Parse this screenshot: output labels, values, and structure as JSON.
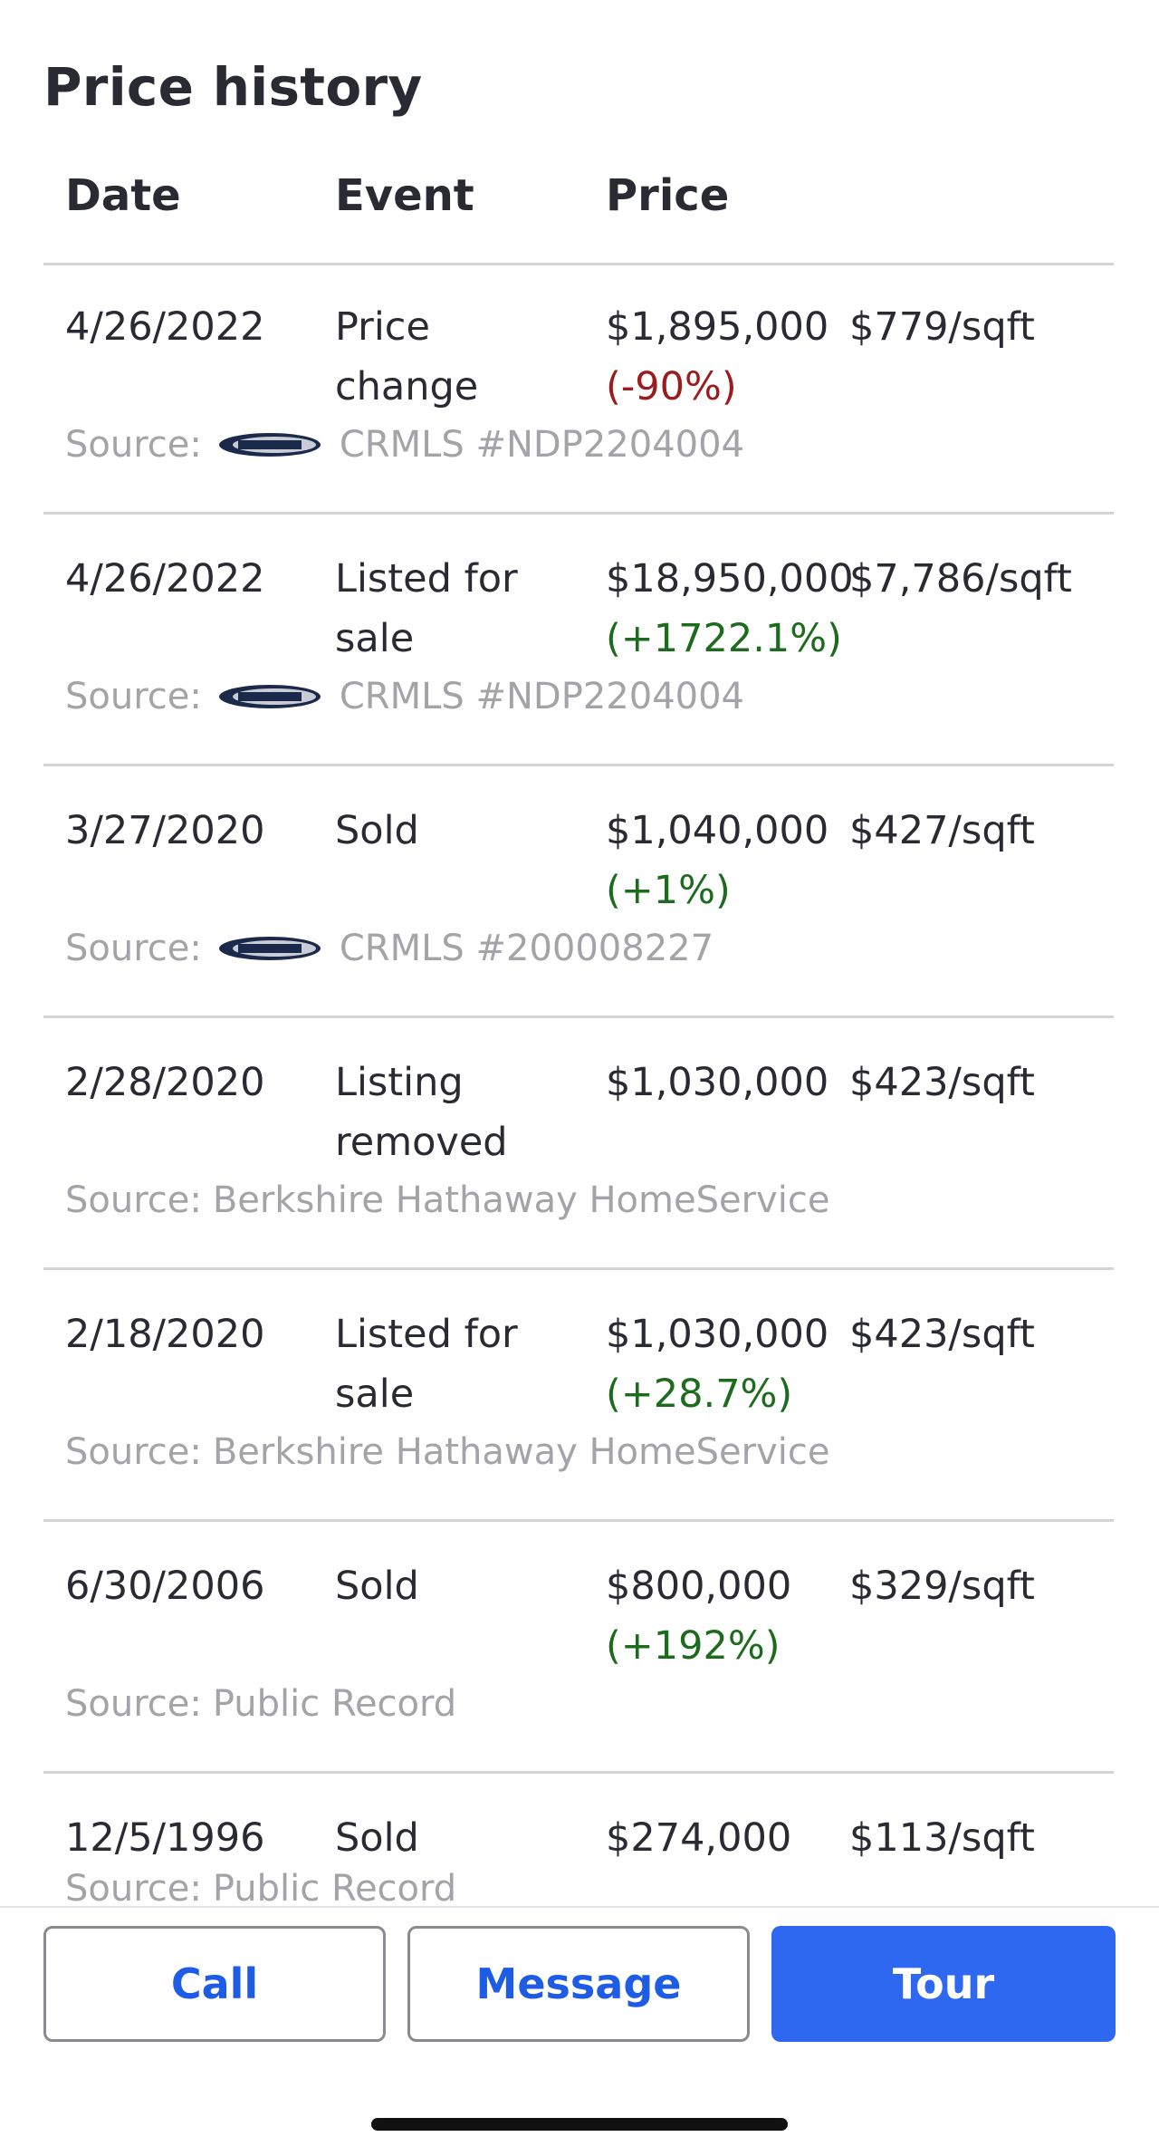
{
  "section": {
    "title": "Price history"
  },
  "columns": {
    "date": "Date",
    "event": "Event",
    "price": "Price"
  },
  "source_label": "Source:",
  "rows": [
    {
      "date": "4/26/2022",
      "event": "Price change",
      "price": "$1,895,000",
      "change": "(-90%)",
      "change_dir": "neg",
      "per_sqft": "$779/sqft",
      "source_logo": "crmls-logo",
      "source": "CRMLS #NDP2204004"
    },
    {
      "date": "4/26/2022",
      "event": "Listed for sale",
      "price": "$18,950,000",
      "change": "(+1722.1%)",
      "change_dir": "pos",
      "per_sqft": "$7,786/sqft",
      "source_logo": "crmls-logo",
      "source": "CRMLS #NDP2204004"
    },
    {
      "date": "3/27/2020",
      "event": "Sold",
      "price": "$1,040,000",
      "change": "(+1%)",
      "change_dir": "pos",
      "per_sqft": "$427/sqft",
      "source_logo": "crmls-logo",
      "source": "CRMLS #200008227"
    },
    {
      "date": "2/28/2020",
      "event": "Listing removed",
      "price": "$1,030,000",
      "change": "",
      "change_dir": "",
      "per_sqft": "$423/sqft",
      "source_logo": "",
      "source": "Berkshire Hathaway HomeService"
    },
    {
      "date": "2/18/2020",
      "event": "Listed for sale",
      "price": "$1,030,000",
      "change": "(+28.7%)",
      "change_dir": "pos",
      "per_sqft": "$423/sqft",
      "source_logo": "",
      "source": "Berkshire Hathaway HomeService"
    },
    {
      "date": "6/30/2006",
      "event": "Sold",
      "price": "$800,000",
      "change": "(+192%)",
      "change_dir": "pos",
      "per_sqft": "$329/sqft",
      "source_logo": "",
      "source": "Public Record"
    },
    {
      "date": "12/5/1996",
      "event": "Sold",
      "price": "$274,000",
      "change": "",
      "change_dir": "",
      "per_sqft": "$113/sqft",
      "source_logo": "",
      "source": "Public Record"
    }
  ],
  "actions": {
    "call": "Call",
    "message": "Message",
    "tour": "Tour"
  },
  "colors": {
    "accent": "#2e67f0",
    "negative": "#9b1c1c",
    "positive": "#1d6b1d"
  }
}
